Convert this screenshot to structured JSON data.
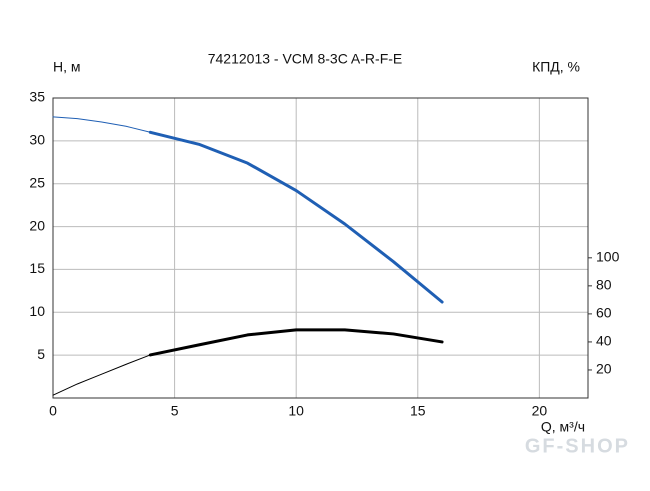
{
  "chart_data": {
    "type": "line",
    "title": "74212013 - VCM 8-3C A-R-F-E",
    "y_label": "H, м",
    "y2_label": "КПД, %",
    "x_label": "Q, м³/ч",
    "watermark": "GF-SHOP",
    "xlim": [
      0,
      22
    ],
    "xticks": [
      0,
      5,
      10,
      15,
      20
    ],
    "ylim": [
      0,
      35
    ],
    "yticks": [
      5,
      10,
      15,
      20,
      25,
      30,
      35
    ],
    "y2lim": [
      0,
      214
    ],
    "y2ticks": [
      20,
      40,
      60,
      80,
      100
    ],
    "grid": true,
    "series": [
      {
        "color": "#1f5fb4",
        "width": 1,
        "x": [
          0,
          1,
          2,
          3,
          4
        ],
        "values": [
          32.8,
          32.6,
          32.2,
          31.7,
          31.0
        ]
      },
      {
        "color": "#1f5fb4",
        "width": 3,
        "x": [
          4,
          6,
          8,
          10,
          12,
          14,
          16
        ],
        "values": [
          31.0,
          29.6,
          27.4,
          24.2,
          20.3,
          15.9,
          11.2
        ]
      },
      {
        "color": "#000000",
        "width": 1,
        "axis": "y2",
        "x": [
          0,
          1,
          2,
          3,
          4
        ],
        "values": [
          2,
          10,
          17,
          24,
          30.7
        ]
      },
      {
        "color": "#000000",
        "width": 3,
        "axis": "y2",
        "x": [
          4,
          6,
          8,
          10,
          12,
          14,
          16
        ],
        "values": [
          30.7,
          37.9,
          45,
          48.6,
          48.6,
          45.7,
          40
        ]
      }
    ]
  }
}
